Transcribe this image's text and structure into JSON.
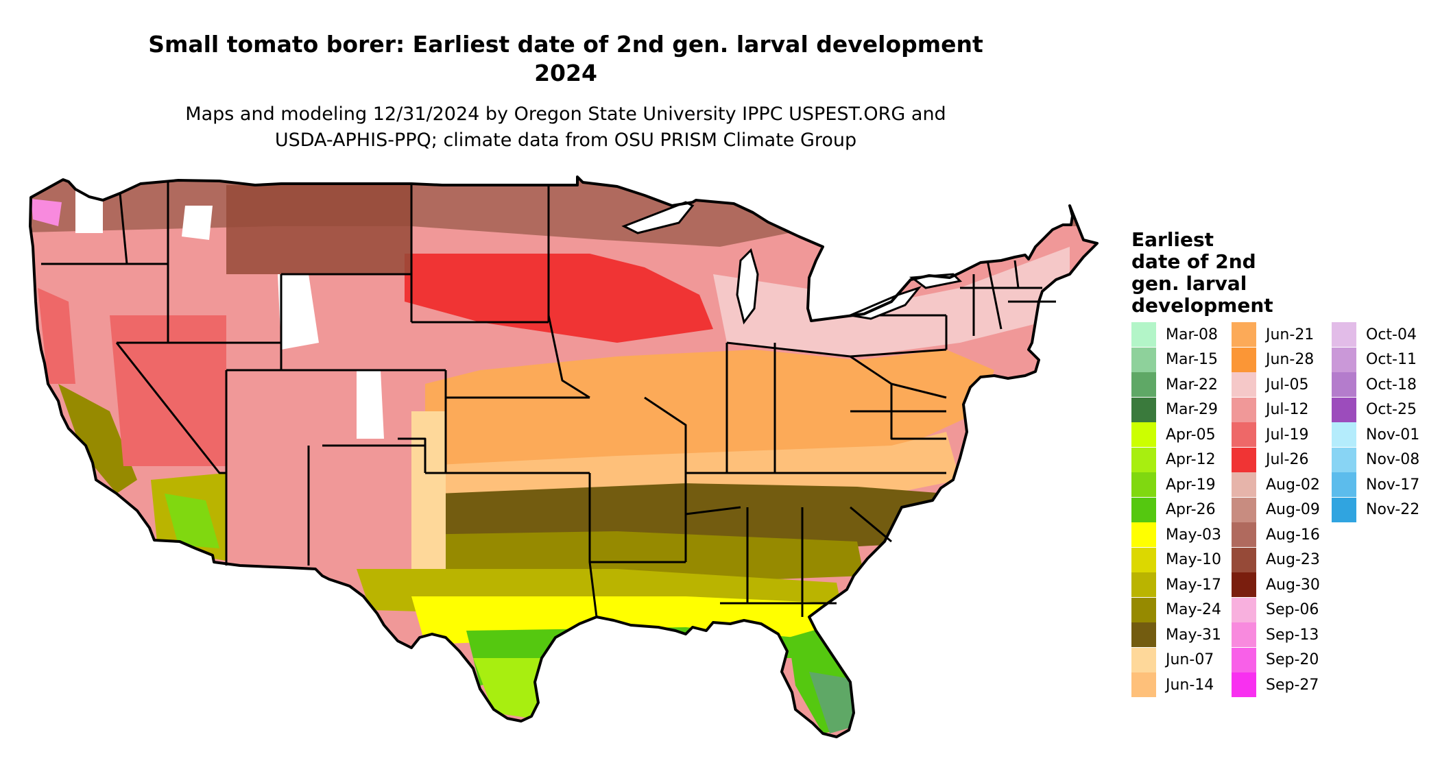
{
  "title": "Small tomato borer: Earliest date of 2nd gen. larval development\n2024",
  "title_line1": "Small tomato borer: Earliest date of 2nd gen. larval development",
  "title_line2": "2024",
  "subtitle_line1": "Maps and modeling 12/31/2024 by Oregon State University IPPC USPEST.ORG and",
  "subtitle_line2": "USDA-APHIS-PPQ; climate data from OSU PRISM Climate Group",
  "legend": {
    "title_lines": [
      "Earliest",
      "date of 2nd",
      "gen. larval",
      "development"
    ],
    "columns": [
      [
        {
          "label": "Mar-08",
          "color": "#b3f5c8"
        },
        {
          "label": "Mar-15",
          "color": "#8ed19b"
        },
        {
          "label": "Mar-22",
          "color": "#5fa866"
        },
        {
          "label": "Mar-29",
          "color": "#3a7a3c"
        },
        {
          "label": "Apr-05",
          "color": "#ccff00"
        },
        {
          "label": "Apr-12",
          "color": "#a8ee10"
        },
        {
          "label": "Apr-19",
          "color": "#80d810"
        },
        {
          "label": "Apr-26",
          "color": "#55c810"
        },
        {
          "label": "May-03",
          "color": "#ffff00"
        },
        {
          "label": "May-10",
          "color": "#dcd800"
        },
        {
          "label": "May-17",
          "color": "#bab400"
        },
        {
          "label": "May-24",
          "color": "#968a00"
        },
        {
          "label": "May-31",
          "color": "#735c10"
        },
        {
          "label": "Jun-07",
          "color": "#fed89a"
        },
        {
          "label": "Jun-14",
          "color": "#fec07a"
        }
      ],
      [
        {
          "label": "Jun-21",
          "color": "#fcaa58"
        },
        {
          "label": "Jun-28",
          "color": "#fb9636"
        },
        {
          "label": "Jul-05",
          "color": "#f5c8c8"
        },
        {
          "label": "Jul-12",
          "color": "#f09898"
        },
        {
          "label": "Jul-19",
          "color": "#ee6868"
        },
        {
          "label": "Jul-26",
          "color": "#f03434"
        },
        {
          "label": "Aug-02",
          "color": "#e6b4aa"
        },
        {
          "label": "Aug-09",
          "color": "#c88c80"
        },
        {
          "label": "Aug-16",
          "color": "#b06a5e"
        },
        {
          "label": "Aug-23",
          "color": "#964a38"
        },
        {
          "label": "Aug-30",
          "color": "#7a1e0e"
        },
        {
          "label": "Sep-06",
          "color": "#f8b0de"
        },
        {
          "label": "Sep-13",
          "color": "#f88ade"
        },
        {
          "label": "Sep-20",
          "color": "#f860e8"
        },
        {
          "label": "Sep-27",
          "color": "#f830f0"
        }
      ],
      [
        {
          "label": "Oct-04",
          "color": "#e2bce8"
        },
        {
          "label": "Oct-11",
          "color": "#ca98d8"
        },
        {
          "label": "Oct-18",
          "color": "#b47ccc"
        },
        {
          "label": "Oct-25",
          "color": "#9c4cbc"
        },
        {
          "label": "Nov-01",
          "color": "#b4ecfc"
        },
        {
          "label": "Nov-08",
          "color": "#88d4f4"
        },
        {
          "label": "Nov-17",
          "color": "#5cbcec"
        },
        {
          "label": "Nov-22",
          "color": "#30a4e0"
        }
      ]
    ]
  }
}
